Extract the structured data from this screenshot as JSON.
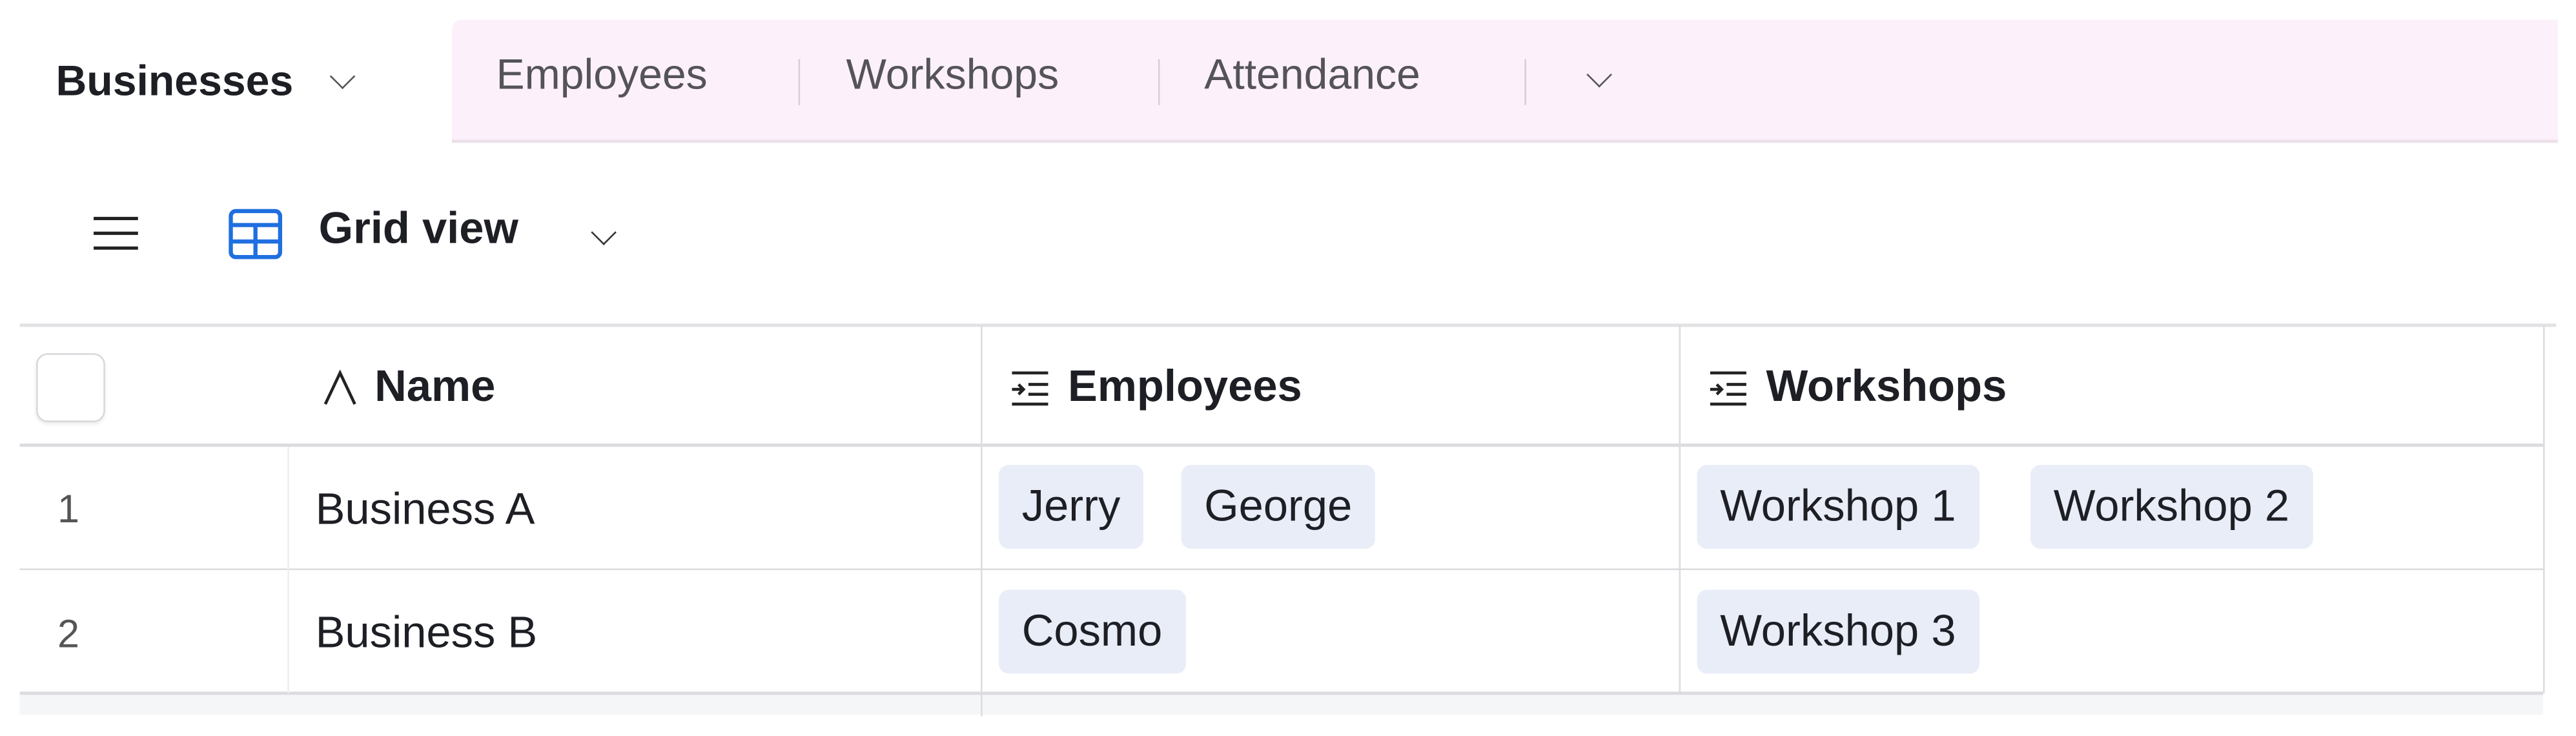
{
  "tabs": {
    "active": "Businesses",
    "others": [
      "Employees",
      "Workshops",
      "Attendance"
    ],
    "more_icon": "chevron-down-icon"
  },
  "toolbar": {
    "menu_icon": "hamburger-icon",
    "view_icon": "grid-icon",
    "view_name": "Grid view"
  },
  "table": {
    "columns": [
      {
        "label": "Name",
        "icon": "text-field-icon"
      },
      {
        "label": "Employees",
        "icon": "linked-record-icon"
      },
      {
        "label": "Workshops",
        "icon": "linked-record-icon"
      }
    ],
    "rows": [
      {
        "num": "1",
        "name": "Business A",
        "employees": [
          "Jerry",
          "George"
        ],
        "workshops": [
          "Workshop 1",
          "Workshop 2"
        ]
      },
      {
        "num": "2",
        "name": "Business B",
        "employees": [
          "Cosmo"
        ],
        "workshops": [
          "Workshop 3"
        ]
      }
    ]
  },
  "colors": {
    "accent": "#1f6fe0",
    "tabbar": "#fcf0fb",
    "chip": "#e9edf8"
  }
}
